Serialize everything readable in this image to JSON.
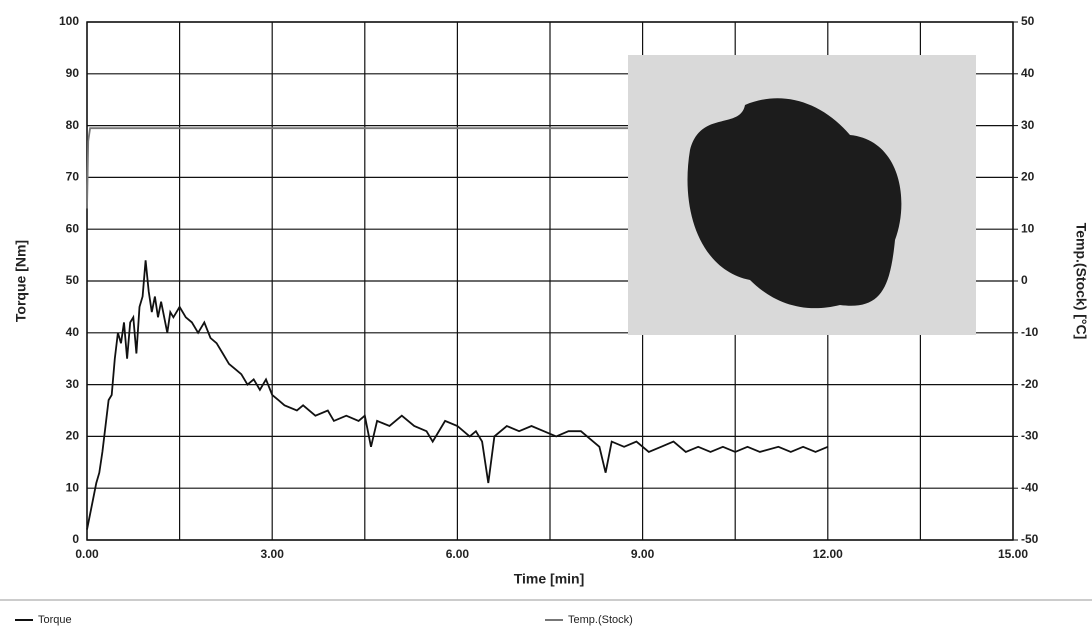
{
  "chart_data": {
    "type": "line",
    "xlabel": "Time [min]",
    "ylabel": "Torque [Nm]",
    "y2label": "Temp.(Stock) [°C]",
    "xlim": [
      0,
      15
    ],
    "ylim": [
      0,
      100
    ],
    "y2lim": [
      -50,
      50
    ],
    "xticks": [
      {
        "value": 0,
        "label": "0.00"
      },
      {
        "value": 3,
        "label": "3.00"
      },
      {
        "value": 6,
        "label": "6.00"
      },
      {
        "value": 9,
        "label": "9.00"
      },
      {
        "value": 12,
        "label": "12.00"
      },
      {
        "value": 15,
        "label": "15.00"
      }
    ],
    "xminor": [
      1.5,
      4.5,
      7.5,
      10.5,
      13.5
    ],
    "yticks": [
      0,
      10,
      20,
      30,
      40,
      50,
      60,
      70,
      80,
      90,
      100
    ],
    "y2ticks": [
      -50,
      -40,
      -30,
      -20,
      -10,
      0,
      10,
      20,
      30,
      40,
      50
    ],
    "grid": true,
    "series": [
      {
        "name": "Torque",
        "color": "#111111",
        "axis": "y",
        "x": [
          0,
          0.05,
          0.1,
          0.15,
          0.2,
          0.25,
          0.3,
          0.35,
          0.4,
          0.45,
          0.5,
          0.55,
          0.6,
          0.65,
          0.7,
          0.75,
          0.8,
          0.85,
          0.9,
          0.95,
          1.0,
          1.05,
          1.1,
          1.15,
          1.2,
          1.3,
          1.35,
          1.4,
          1.5,
          1.6,
          1.7,
          1.8,
          1.9,
          2.0,
          2.1,
          2.2,
          2.3,
          2.4,
          2.5,
          2.6,
          2.7,
          2.8,
          2.9,
          3.0,
          3.1,
          3.2,
          3.4,
          3.5,
          3.7,
          3.9,
          4.0,
          4.2,
          4.4,
          4.5,
          4.6,
          4.7,
          4.9,
          5.1,
          5.3,
          5.5,
          5.6,
          5.8,
          6.0,
          6.2,
          6.3,
          6.4,
          6.5,
          6.6,
          6.8,
          7.0,
          7.2,
          7.4,
          7.6,
          7.8,
          8.0,
          8.2,
          8.3,
          8.4,
          8.5,
          8.7,
          8.9,
          9.1,
          9.3,
          9.5,
          9.7,
          9.9,
          10.1,
          10.3,
          10.5,
          10.7,
          10.9,
          11.2,
          11.4,
          11.6,
          11.8,
          12.0
        ],
        "values": [
          2,
          5,
          8,
          11,
          13,
          17,
          22,
          27,
          28,
          35,
          40,
          38,
          42,
          35,
          42,
          43,
          36,
          45,
          47,
          54,
          48,
          44,
          47,
          43,
          46,
          40,
          44,
          43,
          45,
          43,
          42,
          40,
          42,
          39,
          38,
          36,
          34,
          33,
          32,
          30,
          31,
          29,
          31,
          28,
          27,
          26,
          25,
          26,
          24,
          25,
          23,
          24,
          23,
          24,
          18,
          23,
          22,
          24,
          22,
          21,
          19,
          23,
          22,
          20,
          21,
          19,
          11,
          20,
          22,
          21,
          22,
          21,
          20,
          21,
          21,
          19,
          18,
          13,
          19,
          18,
          19,
          17,
          18,
          19,
          17,
          18,
          17,
          18,
          17,
          18,
          17,
          18,
          17,
          18,
          17,
          18
        ]
      },
      {
        "name": "Temp.(Stock)",
        "color": "#777777",
        "axis": "y2",
        "x": [
          0,
          0.02,
          0.05,
          12
        ],
        "values": [
          14,
          27,
          29.5,
          29.5
        ]
      }
    ]
  }
}
